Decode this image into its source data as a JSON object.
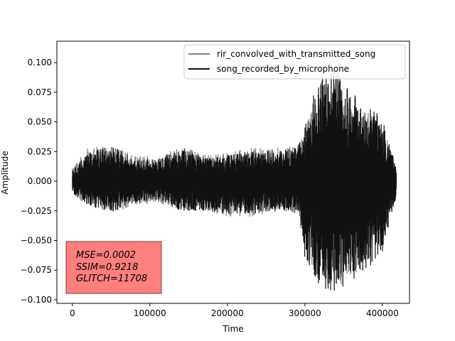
{
  "chart_data": {
    "type": "line",
    "title": "",
    "xlabel": "Time",
    "ylabel": "Amplitude",
    "xlim": [
      -20000,
      435000
    ],
    "ylim": [
      -0.103,
      0.118
    ],
    "x_ticks": [
      0,
      100000,
      200000,
      300000,
      400000
    ],
    "x_tick_labels": [
      "0",
      "100000",
      "200000",
      "300000",
      "400000"
    ],
    "y_ticks": [
      -0.1,
      -0.075,
      -0.05,
      -0.025,
      0.0,
      0.025,
      0.05,
      0.075,
      0.1
    ],
    "y_tick_labels": [
      "−0.100",
      "−0.075",
      "−0.050",
      "−0.025",
      "0.000",
      "0.025",
      "0.050",
      "0.075",
      "0.100"
    ],
    "legend_position": "top-right",
    "series": [
      {
        "name": "rir_convolved_with_transmitted_song",
        "color": "#808080",
        "x_range": [
          0,
          418000
        ],
        "envelope_x": [
          0,
          20000,
          50000,
          80000,
          110000,
          140000,
          170000,
          200000,
          230000,
          260000,
          290000,
          300000,
          320000,
          340000,
          360000,
          380000,
          400000,
          418000
        ],
        "envelope_upper": [
          0.012,
          0.028,
          0.03,
          0.022,
          0.02,
          0.03,
          0.022,
          0.024,
          0.028,
          0.028,
          0.03,
          0.045,
          0.085,
          0.09,
          0.07,
          0.06,
          0.05,
          0.01
        ],
        "envelope_lower": [
          -0.012,
          -0.02,
          -0.028,
          -0.02,
          -0.018,
          -0.025,
          -0.025,
          -0.03,
          -0.03,
          -0.027,
          -0.028,
          -0.06,
          -0.085,
          -0.09,
          -0.08,
          -0.07,
          -0.055,
          -0.012
        ]
      },
      {
        "name": "song_recorded_by_microphone",
        "color": "#111111",
        "x_range": [
          0,
          418000
        ],
        "envelope_x": [
          0,
          20000,
          50000,
          80000,
          110000,
          140000,
          170000,
          200000,
          230000,
          260000,
          290000,
          300000,
          320000,
          340000,
          360000,
          380000,
          400000,
          418000
        ],
        "envelope_upper": [
          0.01,
          0.025,
          0.03,
          0.02,
          0.018,
          0.03,
          0.02,
          0.022,
          0.026,
          0.026,
          0.03,
          0.05,
          0.09,
          0.095,
          0.075,
          0.065,
          0.055,
          0.012
        ],
        "envelope_lower": [
          -0.01,
          -0.02,
          -0.028,
          -0.018,
          -0.016,
          -0.025,
          -0.025,
          -0.028,
          -0.028,
          -0.025,
          -0.025,
          -0.065,
          -0.09,
          -0.093,
          -0.085,
          -0.075,
          -0.06,
          -0.014
        ]
      }
    ],
    "annotation": {
      "lines": [
        "MSE=0.0002",
        "SSIM=0.9218",
        "GLITCH=11708"
      ],
      "box_color": "#ff7f7f",
      "position": "bottom-left"
    }
  }
}
